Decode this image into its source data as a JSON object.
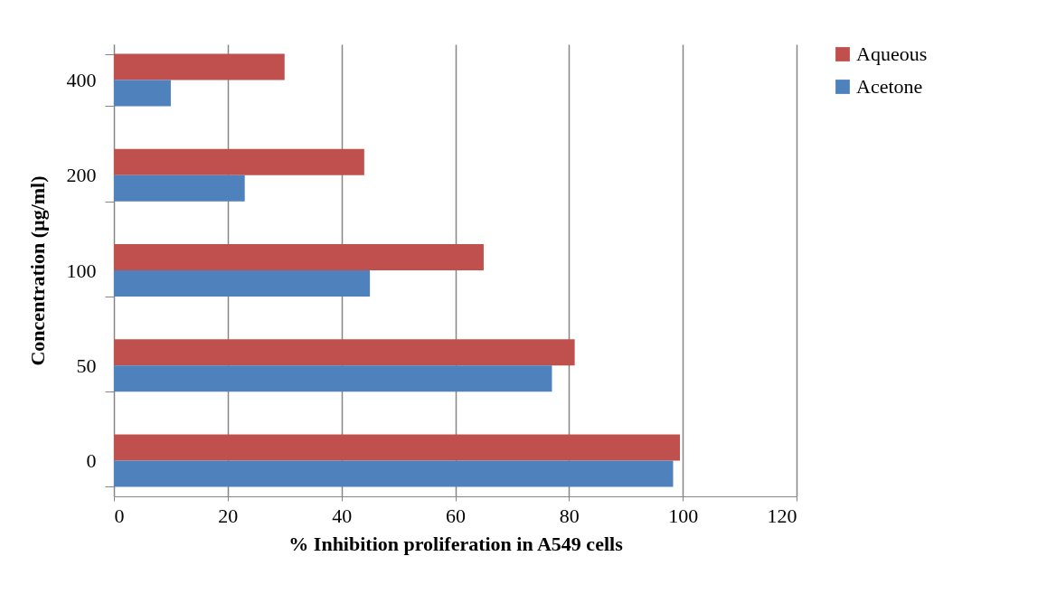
{
  "chart_data": {
    "type": "bar",
    "orientation": "horizontal",
    "xlabel": "% Inhibition proliferation in A549 cells",
    "ylabel": "Concentration (µg/ml)",
    "categories": [
      "400",
      "200",
      "100",
      "50",
      "0"
    ],
    "series": [
      {
        "name": "Aqueous",
        "color": "#c0504d",
        "values": [
          30,
          44,
          65,
          81,
          99.5
        ]
      },
      {
        "name": "Acetone",
        "color": "#4f81bd",
        "values": [
          10,
          23,
          45,
          77,
          98.3
        ]
      }
    ],
    "xlim": [
      0,
      120
    ],
    "xticks": [
      0,
      20,
      40,
      60,
      80,
      100,
      120
    ],
    "grid": "x",
    "legend": "right"
  }
}
